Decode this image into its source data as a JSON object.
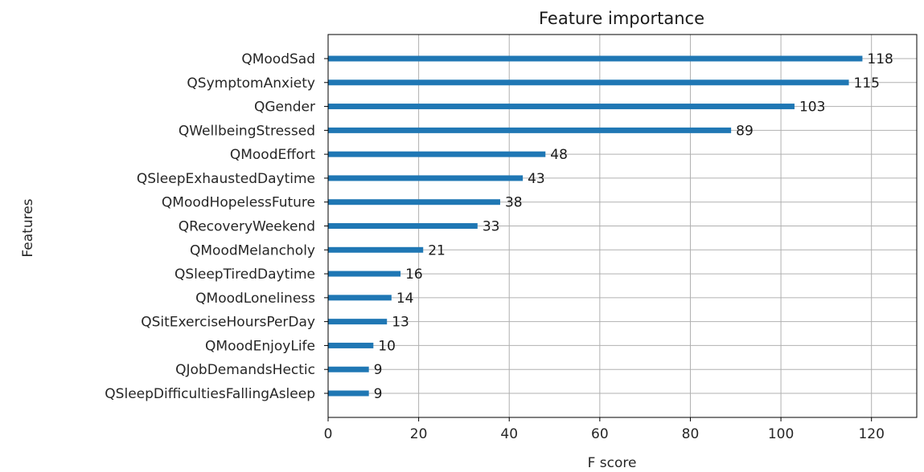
{
  "chart_data": {
    "type": "bar",
    "orientation": "horizontal",
    "title": "Feature importance",
    "xlabel": "F score",
    "ylabel": "Features",
    "xlim": [
      0,
      130
    ],
    "xticks": [
      0,
      20,
      40,
      60,
      80,
      100,
      120
    ],
    "grid": true,
    "bar_color": "#1f77b4",
    "categories": [
      "QMoodSad",
      "QSymptomAnxiety",
      "QGender",
      "QWellbeingStressed",
      "QMoodEffort",
      "QSleepExhaustedDaytime",
      "QMoodHopelessFuture",
      "QRecoveryWeekend",
      "QMoodMelancholy",
      "QSleepTiredDaytime",
      "QMoodLoneliness",
      "QSitExerciseHoursPerDay",
      "QMoodEnjoyLife",
      "QJobDemandsHectic",
      "QSleepDifficultiesFallingAsleep"
    ],
    "values": [
      118,
      115,
      103,
      89,
      48,
      43,
      38,
      33,
      21,
      16,
      14,
      13,
      10,
      9,
      9
    ]
  }
}
